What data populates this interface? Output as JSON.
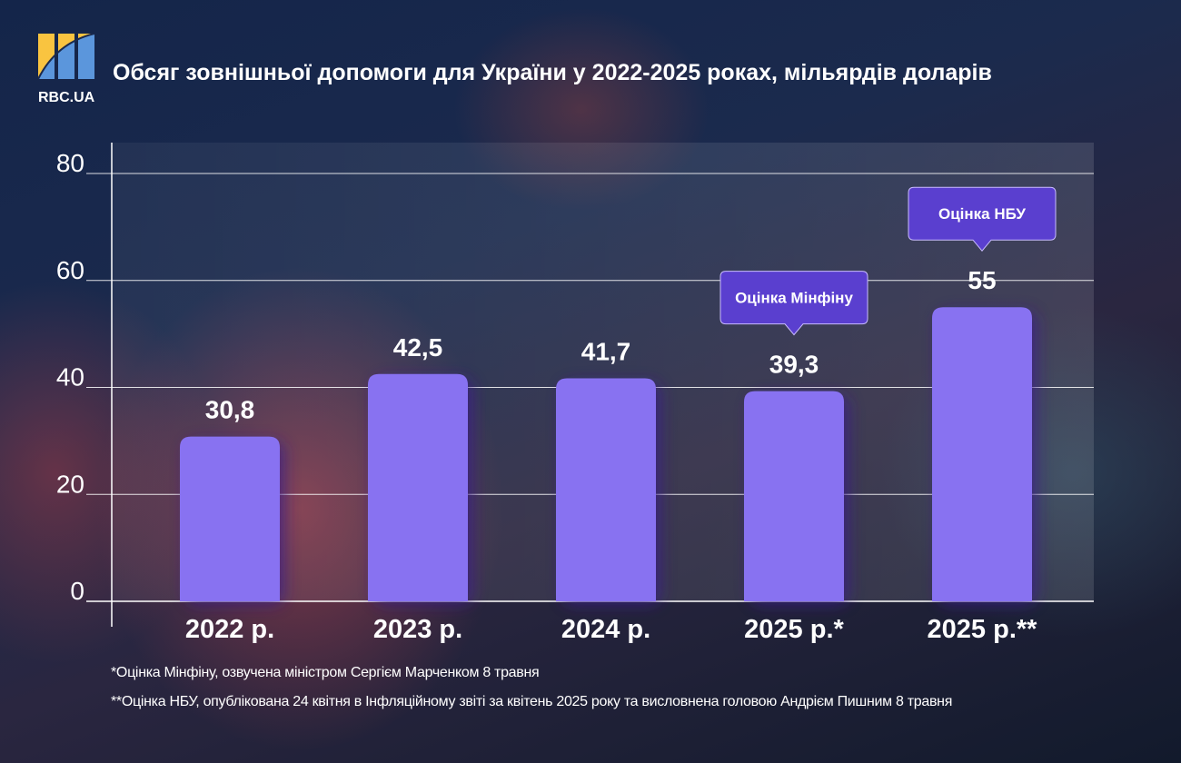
{
  "brand": {
    "name": "RBC.UA",
    "colors": {
      "yellow": "#f9c440",
      "blue": "#5b96dc"
    }
  },
  "chart_data": {
    "type": "bar",
    "title": "Обсяг зовнішньої допомоги для України у 2022-2025 роках, мільярдів доларів",
    "categories": [
      "2022 р.",
      "2023 р.",
      "2024 р.",
      "2025 р.*",
      "2025 р.**"
    ],
    "values": [
      30.8,
      42.5,
      41.7,
      39.3,
      55
    ],
    "value_labels": [
      "30,8",
      "42,5",
      "41,7",
      "39,3",
      "55"
    ],
    "yticks": [
      "0",
      "20",
      "40",
      "60",
      "80"
    ],
    "ylim": [
      0,
      80
    ],
    "grid": true,
    "bar_color": "#8872f1",
    "annotations": [
      {
        "category": "2025 р.*",
        "text": "Оцінка Мінфіну"
      },
      {
        "category": "2025 р.**",
        "text": "Оцінка НБУ"
      }
    ],
    "annotation_color": "#5a3fcf"
  },
  "footnotes": [
    "*Оцінка Мінфіну, озвучена міністром Сергієм Марченком 8 травня",
    "**Оцінка НБУ, опублікована 24 квітня в Інфляційному звіті за квітень 2025 року та висловнена головою Андрієм Пишним 8 травня"
  ]
}
